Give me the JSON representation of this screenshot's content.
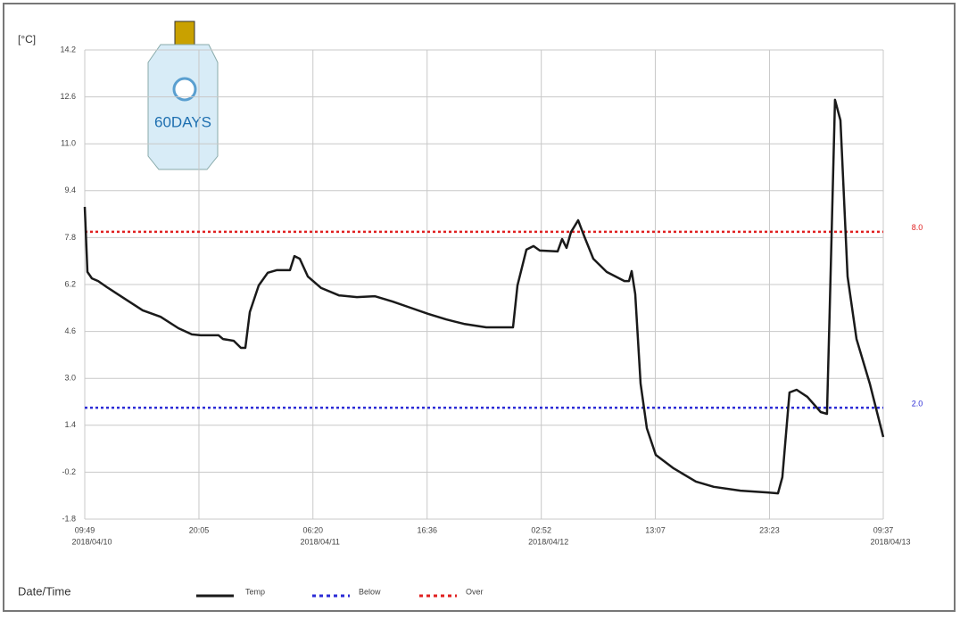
{
  "chart_data": {
    "type": "line",
    "y_unit_label": "[°C]",
    "x_axis_label": "Date/Time",
    "device_label": "60DAYS",
    "xlim": [
      0,
      71.8
    ],
    "ylim": [
      -1.8,
      14.2
    ],
    "yticks": [
      14.2,
      12.6,
      {
        "value": 11.0,
        "label": "11.0"
      },
      9.4,
      7.8,
      6.2,
      4.6,
      {
        "value": 3.0,
        "label": "3.0"
      },
      1.4,
      -0.2,
      -1.8
    ],
    "xticks": [
      {
        "value": 0,
        "label": "09:49"
      },
      {
        "value": 10.267,
        "label": "20:05"
      },
      {
        "value": 20.517,
        "label": "06:20"
      },
      {
        "value": 30.783,
        "label": "16:36"
      },
      {
        "value": 41.05,
        "label": "02:52"
      },
      {
        "value": 51.3,
        "label": "13:07"
      },
      {
        "value": 61.567,
        "label": "23:23"
      },
      {
        "value": 71.8,
        "label": "09:37"
      }
    ],
    "date_labels": [
      {
        "value": 0,
        "label": "2018/04/10"
      },
      {
        "value": 20.517,
        "label": "2018/04/11"
      },
      {
        "value": 41.05,
        "label": "2018/04/12"
      },
      {
        "value": 71.8,
        "label": "2018/04/13"
      }
    ],
    "grid": true,
    "series": [
      {
        "name": "Temp",
        "color": "#1a1a1a",
        "x": [
          0,
          0.24,
          0.64,
          1.2,
          2.0,
          3.61,
          5.21,
          6.82,
          8.42,
          9.63,
          10.43,
          12.03,
          12.43,
          13.4,
          14.04,
          14.44,
          14.84,
          15.64,
          16.45,
          17.25,
          18.45,
          18.85,
          19.33,
          20.06,
          21.26,
          22.86,
          24.47,
          26.07,
          27.68,
          29.28,
          30.89,
          32.49,
          34.09,
          36.1,
          38.51,
          38.91,
          39.71,
          40.35,
          40.91,
          42.52,
          42.92,
          43.32,
          43.72,
          44.36,
          44.92,
          45.73,
          46.93,
          48.53,
          48.94,
          49.18,
          49.5,
          49.98,
          50.54,
          51.34,
          52.95,
          54.95,
          56.56,
          58.96,
          61.37,
          62.33,
          62.73,
          63.37,
          64.01,
          64.97,
          66.18,
          66.74,
          66.98,
          67.46,
          67.95,
          68.59,
          69.39,
          70.59,
          71.8
        ],
        "values": [
          8.85,
          6.63,
          6.41,
          6.32,
          6.11,
          5.71,
          5.32,
          5.1,
          4.71,
          4.5,
          4.47,
          4.47,
          4.34,
          4.28,
          4.04,
          4.04,
          5.26,
          6.17,
          6.6,
          6.69,
          6.69,
          7.17,
          7.08,
          6.47,
          6.08,
          5.83,
          5.77,
          5.8,
          5.62,
          5.41,
          5.2,
          5.01,
          4.86,
          4.74,
          4.74,
          6.17,
          7.39,
          7.51,
          7.36,
          7.33,
          7.75,
          7.45,
          7.99,
          8.39,
          7.84,
          7.08,
          6.63,
          6.32,
          6.32,
          6.66,
          5.87,
          2.82,
          1.3,
          0.39,
          -0.07,
          -0.52,
          -0.7,
          -0.83,
          -0.89,
          -0.92,
          -0.37,
          2.52,
          2.61,
          2.37,
          1.85,
          1.79,
          5.26,
          12.5,
          11.8,
          6.47,
          4.34,
          2.82,
          1.0
        ]
      }
    ],
    "thresholds": [
      {
        "name": "Below",
        "color": "#2b2bd6",
        "value": 2.0,
        "label": "2.0"
      },
      {
        "name": "Over",
        "color": "#e02020",
        "value": 8.0,
        "label": "8.0"
      }
    ]
  }
}
